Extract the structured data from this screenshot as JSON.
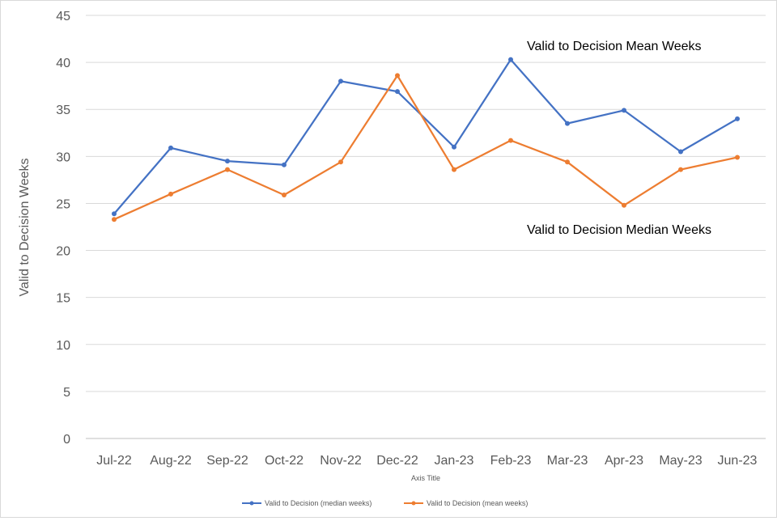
{
  "chart_data": {
    "type": "line",
    "categories": [
      "Jul-22",
      "Aug-22",
      "Sep-22",
      "Oct-22",
      "Nov-22",
      "Dec-22",
      "Jan-23",
      "Feb-23",
      "Mar-23",
      "Apr-23",
      "May-23",
      "Jun-23"
    ],
    "series": [
      {
        "name": "Valid to Decision (median weeks)",
        "color": "#4472c4",
        "values": [
          23.9,
          30.9,
          29.5,
          29.1,
          38.0,
          36.9,
          31.0,
          40.3,
          33.5,
          34.9,
          30.5,
          34.0
        ]
      },
      {
        "name": "Valid to Decision (mean weeks)",
        "color": "#ed7d31",
        "values": [
          23.3,
          26.0,
          28.6,
          25.9,
          29.4,
          38.6,
          28.6,
          31.7,
          29.4,
          24.8,
          28.6,
          29.9
        ]
      }
    ],
    "ylim": [
      0,
      45
    ],
    "yticks": [
      "0",
      "5",
      "10",
      "15",
      "20",
      "25",
      "30",
      "35",
      "40",
      "45"
    ],
    "ylabel": "Valid to Decision Weeks",
    "xlabel": "Axis Title",
    "annotations": [
      "Valid to Decision Mean Weeks",
      "Valid to Decision Median Weeks"
    ],
    "grid": "horizontal",
    "legend_position": "bottom"
  }
}
